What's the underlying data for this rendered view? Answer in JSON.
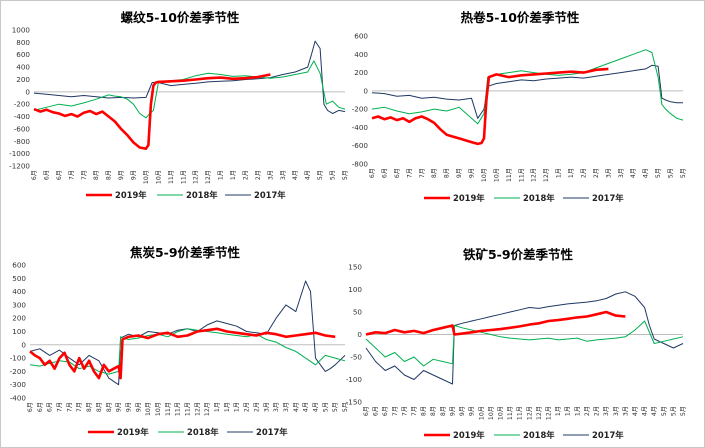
{
  "chart_data": [
    {
      "type": "line",
      "title": "螺纹5-10价差季节性",
      "ylim": [
        -1200,
        1000
      ],
      "yticks": [
        1000,
        800,
        600,
        400,
        200,
        0,
        -200,
        -400,
        -600,
        -800,
        -1000,
        -1200
      ],
      "x_tick_labels": [
        "6月",
        "6月",
        "6月",
        "7月",
        "7月",
        "8月",
        "8月",
        "9月",
        "9月",
        "10月",
        "10月",
        "11月",
        "11月",
        "12月",
        "12月",
        "1月",
        "1月",
        "2月",
        "2月",
        "3月",
        "3月",
        "4月",
        "4月",
        "5月",
        "5月",
        "5月"
      ],
      "legend_position": "bottom",
      "series": [
        {
          "name": "2019年",
          "color": "#ff0000",
          "x": [
            0,
            0.5,
            1,
            1.5,
            2,
            2.5,
            3,
            3.5,
            4,
            4.5,
            5,
            5.5,
            6,
            6.5,
            7,
            7.5,
            8,
            8.5,
            9,
            9.2,
            9.4,
            9.6,
            9.8,
            10,
            11,
            12,
            13,
            14,
            15,
            16,
            17,
            18,
            19
          ],
          "y": [
            -280,
            -320,
            -290,
            -330,
            -350,
            -390,
            -360,
            -400,
            -340,
            -310,
            -360,
            -320,
            -400,
            -480,
            -600,
            -700,
            -820,
            -900,
            -920,
            -860,
            -200,
            100,
            150,
            160,
            170,
            180,
            200,
            220,
            230,
            210,
            220,
            240,
            280
          ]
        },
        {
          "name": "2018年",
          "color": "#00b050",
          "x": [
            0,
            1,
            2,
            3,
            4,
            5,
            6,
            6.5,
            7,
            7.5,
            8,
            8.5,
            9,
            9.3,
            9.6,
            10,
            11,
            12,
            13,
            14,
            15,
            16,
            17,
            18,
            19,
            20,
            21,
            22,
            22.5,
            23,
            23.5,
            24,
            24.5,
            25
          ],
          "y": [
            -300,
            -250,
            -200,
            -230,
            -180,
            -120,
            -50,
            -70,
            -80,
            -120,
            -200,
            -350,
            -420,
            -350,
            -300,
            150,
            180,
            200,
            260,
            300,
            280,
            250,
            260,
            240,
            220,
            240,
            280,
            320,
            500,
            300,
            -200,
            -150,
            -250,
            -280
          ]
        },
        {
          "name": "2017年",
          "color": "#1f3864",
          "x": [
            0,
            1,
            2,
            3,
            4,
            5,
            6,
            7,
            8,
            9,
            9.5,
            10,
            11,
            12,
            13,
            14,
            15,
            16,
            17,
            18,
            19,
            20,
            21,
            22,
            22.3,
            22.6,
            23,
            23.3,
            23.6,
            24,
            24.5,
            25
          ],
          "y": [
            -20,
            -40,
            -60,
            -80,
            -60,
            -80,
            -100,
            -90,
            -100,
            -90,
            150,
            150,
            100,
            120,
            140,
            160,
            170,
            180,
            200,
            210,
            230,
            280,
            320,
            400,
            600,
            820,
            700,
            -200,
            -300,
            -350,
            -300,
            -320
          ]
        }
      ]
    },
    {
      "type": "line",
      "title": "热卷5-10价差季节性",
      "ylim": [
        -800,
        600
      ],
      "yticks": [
        600,
        400,
        200,
        0,
        -200,
        -400,
        -600,
        -800
      ],
      "x_tick_labels": [
        "6月",
        "6月",
        "6月",
        "7月",
        "7月",
        "8月",
        "8月",
        "9月",
        "9月",
        "10月",
        "10月",
        "11月",
        "11月",
        "12月",
        "12月",
        "1月",
        "1月",
        "2月",
        "2月",
        "3月",
        "3月",
        "4月",
        "4月",
        "5月",
        "5月",
        "5月"
      ],
      "legend_position": "bottom",
      "series": [
        {
          "name": "2019年",
          "color": "#ff0000",
          "x": [
            0,
            0.5,
            1,
            1.5,
            2,
            2.5,
            3,
            3.5,
            4,
            4.5,
            5,
            5.5,
            6,
            6.5,
            7,
            7.5,
            8,
            8.5,
            8.8,
            9,
            9.2,
            9.4,
            10,
            11,
            12,
            13,
            14,
            15,
            16,
            17,
            18,
            19
          ],
          "y": [
            -300,
            -280,
            -310,
            -290,
            -320,
            -300,
            -340,
            -300,
            -280,
            -310,
            -350,
            -420,
            -480,
            -500,
            -520,
            -540,
            -560,
            -580,
            -570,
            -520,
            -100,
            150,
            180,
            150,
            170,
            180,
            190,
            200,
            210,
            200,
            230,
            240
          ]
        },
        {
          "name": "2018年",
          "color": "#00b050",
          "x": [
            0,
            1,
            2,
            3,
            4,
            5,
            6,
            7,
            8,
            8.5,
            9,
            9.3,
            10,
            11,
            12,
            13,
            14,
            15,
            16,
            17,
            18,
            19,
            20,
            21,
            22,
            22.5,
            23,
            23.3,
            23.6,
            24,
            24.5,
            25
          ],
          "y": [
            -200,
            -180,
            -220,
            -250,
            -230,
            -200,
            -220,
            -180,
            -300,
            -360,
            -250,
            150,
            180,
            200,
            220,
            200,
            180,
            170,
            180,
            200,
            250,
            300,
            350,
            400,
            450,
            420,
            150,
            -150,
            -200,
            -250,
            -300,
            -320
          ]
        },
        {
          "name": "2017年",
          "color": "#1f3864",
          "x": [
            0,
            1,
            2,
            3,
            4,
            5,
            6,
            7,
            8,
            8.5,
            9,
            9.3,
            10,
            11,
            12,
            13,
            14,
            15,
            16,
            17,
            18,
            19,
            20,
            21,
            22,
            22.5,
            23,
            23.3,
            23.6,
            24,
            24.5,
            25
          ],
          "y": [
            -20,
            -30,
            -60,
            -50,
            -80,
            -70,
            -90,
            -100,
            -80,
            -300,
            -200,
            50,
            80,
            100,
            120,
            110,
            130,
            140,
            150,
            140,
            160,
            180,
            200,
            220,
            240,
            280,
            270,
            -80,
            -100,
            -120,
            -130,
            -130
          ]
        }
      ]
    },
    {
      "type": "line",
      "title": "焦炭5-9价差季节性",
      "ylim": [
        -400,
        600
      ],
      "yticks": [
        600,
        500,
        400,
        300,
        200,
        100,
        0,
        -100,
        -200,
        -300,
        -400
      ],
      "x_tick_labels": [
        "6月",
        "6月",
        "6月",
        "7月",
        "7月",
        "7月",
        "8月",
        "8月",
        "8月",
        "9月",
        "9月",
        "9月",
        "10月",
        "10月",
        "11月",
        "11月",
        "11月",
        "12月",
        "12月",
        "1月",
        "1月",
        "1月",
        "2月",
        "2月",
        "3月",
        "3月",
        "3月",
        "4月",
        "4月",
        "4月",
        "5月",
        "5月",
        "5月"
      ],
      "legend_position": "bottom",
      "series": [
        {
          "name": "2019年",
          "color": "#ff0000",
          "x": [
            0,
            0.5,
            1,
            1.5,
            2,
            2.5,
            3,
            3.5,
            4,
            4.5,
            5,
            5.5,
            6,
            6.5,
            7,
            7.5,
            8,
            8.5,
            9,
            9.2,
            9.4,
            10,
            11,
            12,
            13,
            14,
            15,
            16,
            17,
            18,
            19,
            20,
            21,
            22,
            23,
            24,
            25,
            26,
            27,
            28,
            29,
            30,
            31
          ],
          "y": [
            -50,
            -80,
            -100,
            -150,
            -120,
            -180,
            -100,
            -60,
            -150,
            -200,
            -100,
            -180,
            -120,
            -200,
            -250,
            -150,
            -200,
            -180,
            -160,
            -250,
            40,
            60,
            70,
            50,
            80,
            90,
            60,
            70,
            100,
            110,
            120,
            100,
            90,
            80,
            70,
            90,
            80,
            60,
            70,
            80,
            90,
            70,
            60
          ]
        },
        {
          "name": "2018年",
          "color": "#00b050",
          "x": [
            0,
            1,
            2,
            3,
            4,
            5,
            6,
            7,
            8,
            9,
            9.2,
            10,
            11,
            12,
            13,
            14,
            15,
            16,
            17,
            18,
            19,
            20,
            21,
            22,
            23,
            24,
            25,
            26,
            27,
            28,
            29,
            30,
            31,
            32
          ],
          "y": [
            -150,
            -160,
            -140,
            -120,
            -130,
            -180,
            -160,
            -200,
            -220,
            -200,
            60,
            40,
            50,
            70,
            80,
            60,
            100,
            120,
            110,
            100,
            90,
            80,
            70,
            60,
            80,
            40,
            20,
            -20,
            -50,
            -100,
            -150,
            -80,
            -100,
            -120
          ]
        },
        {
          "name": "2017年",
          "color": "#1f3864",
          "x": [
            0,
            1,
            2,
            3,
            4,
            5,
            6,
            7,
            8,
            9,
            9.2,
            10,
            11,
            12,
            13,
            14,
            15,
            16,
            17,
            18,
            19,
            20,
            21,
            22,
            23,
            24,
            25,
            26,
            27,
            28,
            28.5,
            29,
            29.5,
            30,
            30.5,
            31,
            32
          ],
          "y": [
            -50,
            -30,
            -80,
            -40,
            -100,
            -150,
            -80,
            -120,
            -250,
            -300,
            50,
            80,
            60,
            100,
            90,
            80,
            110,
            120,
            100,
            150,
            180,
            160,
            140,
            100,
            90,
            80,
            200,
            300,
            250,
            480,
            400,
            -100,
            -150,
            -200,
            -180,
            -150,
            -80
          ]
        }
      ]
    },
    {
      "type": "line",
      "title": "铁矿5-9价差季节性",
      "ylim": [
        -150,
        150
      ],
      "yticks": [
        150,
        100,
        50,
        0,
        -50,
        -100,
        -150
      ],
      "x_tick_labels": [
        "6月",
        "6月",
        "6月",
        "7月",
        "7月",
        "7月",
        "8月",
        "8月",
        "8月",
        "9月",
        "9月",
        "9月",
        "10月",
        "10月",
        "10月",
        "11月",
        "11月",
        "12月",
        "12月",
        "12月",
        "1月",
        "1月",
        "1月",
        "2月",
        "2月",
        "3月",
        "3月",
        "3月",
        "4月",
        "4月",
        "4月",
        "5月",
        "5月",
        "5月"
      ],
      "legend_position": "bottom",
      "series": [
        {
          "name": "2019年",
          "color": "#ff0000",
          "x": [
            0,
            1,
            2,
            3,
            4,
            5,
            6,
            7,
            8,
            9,
            9.2,
            10,
            11,
            12,
            13,
            14,
            15,
            16,
            17,
            18,
            19,
            20,
            21,
            22,
            23,
            24,
            25,
            26,
            27
          ],
          "y": [
            0,
            5,
            3,
            10,
            5,
            8,
            3,
            10,
            15,
            20,
            0,
            2,
            5,
            8,
            10,
            12,
            15,
            18,
            22,
            25,
            30,
            32,
            35,
            38,
            40,
            45,
            50,
            42,
            40
          ]
        },
        {
          "name": "2018年",
          "color": "#00b050",
          "x": [
            0,
            1,
            2,
            3,
            4,
            5,
            6,
            7,
            8,
            9,
            9.2,
            10,
            11,
            12,
            13,
            14,
            15,
            16,
            17,
            18,
            19,
            20,
            21,
            22,
            23,
            24,
            25,
            26,
            27,
            28,
            29,
            30,
            31,
            32,
            33
          ],
          "y": [
            -10,
            -30,
            -50,
            -40,
            -60,
            -50,
            -70,
            -55,
            -60,
            -65,
            20,
            15,
            10,
            5,
            0,
            -5,
            -8,
            -10,
            -12,
            -10,
            -8,
            -12,
            -10,
            -8,
            -15,
            -12,
            -10,
            -8,
            -5,
            10,
            30,
            -20,
            -15,
            -10,
            -5
          ]
        },
        {
          "name": "2017年",
          "color": "#1f3864",
          "x": [
            0,
            1,
            2,
            3,
            4,
            5,
            6,
            7,
            8,
            9,
            9.2,
            10,
            11,
            12,
            13,
            14,
            15,
            16,
            17,
            18,
            19,
            20,
            21,
            22,
            23,
            24,
            25,
            26,
            27,
            28,
            29,
            29.5,
            30,
            31,
            32,
            33
          ],
          "y": [
            -30,
            -60,
            -80,
            -70,
            -90,
            -100,
            -80,
            -90,
            -100,
            -110,
            20,
            25,
            30,
            35,
            40,
            45,
            50,
            55,
            60,
            58,
            62,
            65,
            68,
            70,
            72,
            75,
            80,
            90,
            95,
            85,
            60,
            20,
            -10,
            -20,
            -30,
            -20
          ]
        }
      ]
    }
  ]
}
